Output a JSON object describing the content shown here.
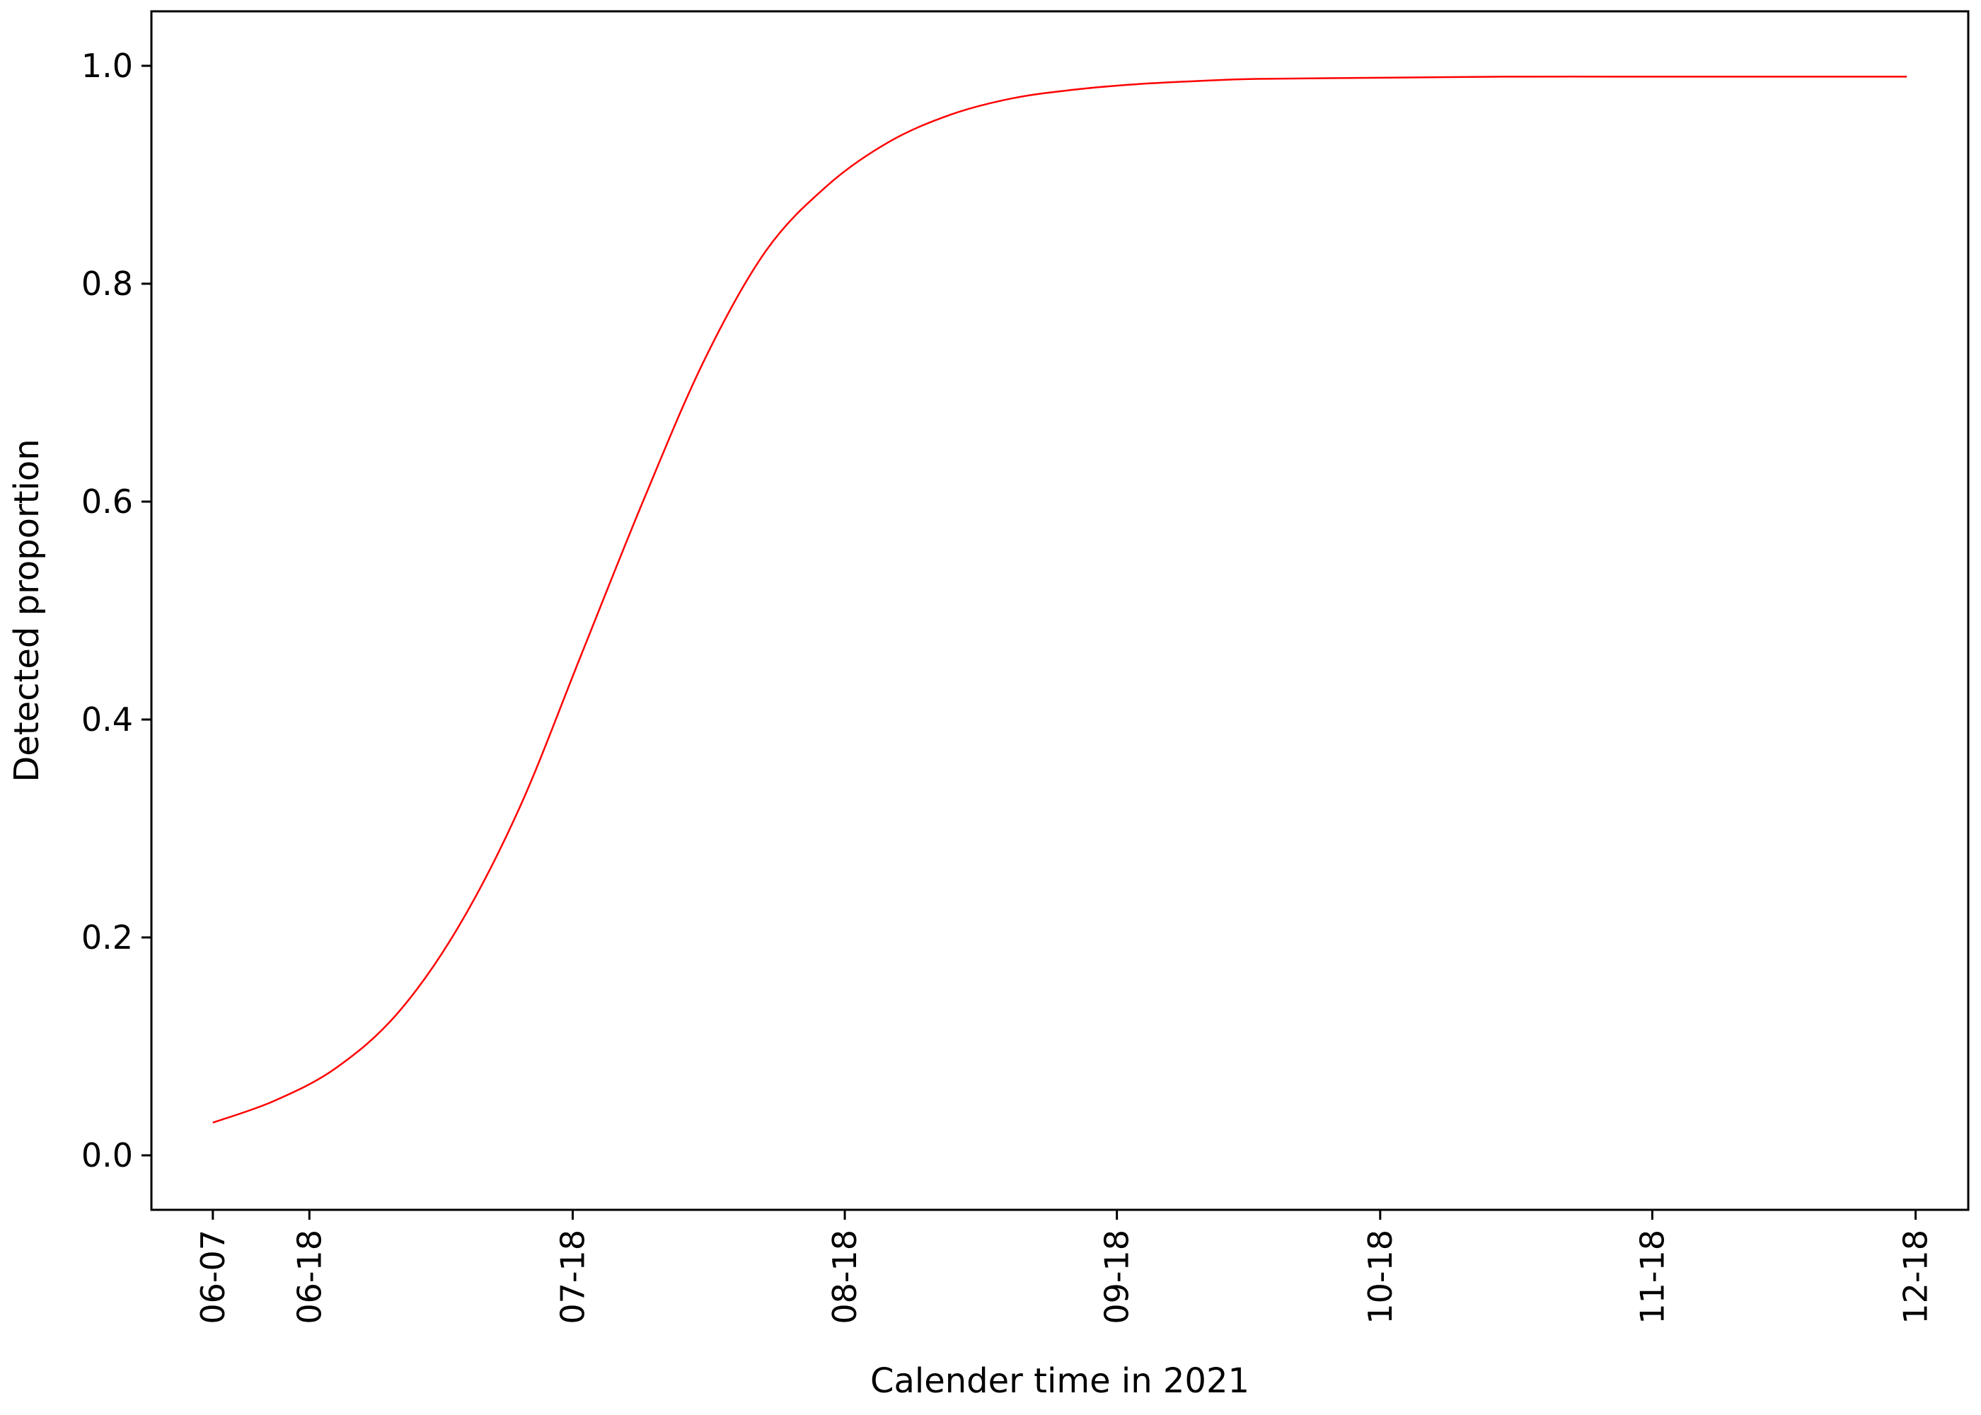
{
  "chart_data": {
    "type": "line",
    "title": "",
    "xlabel": "Calender time in 2021",
    "ylabel": "Detected proportion",
    "x_ticks": [
      "06-07",
      "06-18",
      "07-18",
      "08-18",
      "09-18",
      "10-18",
      "11-18",
      "12-18"
    ],
    "y_ticks": [
      "0.0",
      "0.2",
      "0.4",
      "0.6",
      "0.8",
      "1.0"
    ],
    "xlim": [
      "2021-05-31",
      "2021-12-24"
    ],
    "ylim": [
      -0.05,
      1.05
    ],
    "grid": false,
    "series": [
      {
        "color": "#ff0000",
        "x": [
          "2021-06-07",
          "2021-06-14",
          "2021-06-21",
          "2021-06-28",
          "2021-07-05",
          "2021-07-12",
          "2021-07-19",
          "2021-07-26",
          "2021-08-02",
          "2021-08-09",
          "2021-08-16",
          "2021-08-23",
          "2021-08-30",
          "2021-09-06",
          "2021-09-13",
          "2021-09-20",
          "2021-09-27",
          "2021-10-04",
          "2021-10-18",
          "2021-11-01",
          "2021-11-18",
          "2021-12-01",
          "2021-12-17"
        ],
        "values": [
          0.03,
          0.05,
          0.08,
          0.13,
          0.21,
          0.32,
          0.46,
          0.6,
          0.73,
          0.83,
          0.89,
          0.93,
          0.955,
          0.97,
          0.978,
          0.983,
          0.986,
          0.988,
          0.989,
          0.99,
          0.99,
          0.99,
          0.99
        ]
      }
    ]
  }
}
